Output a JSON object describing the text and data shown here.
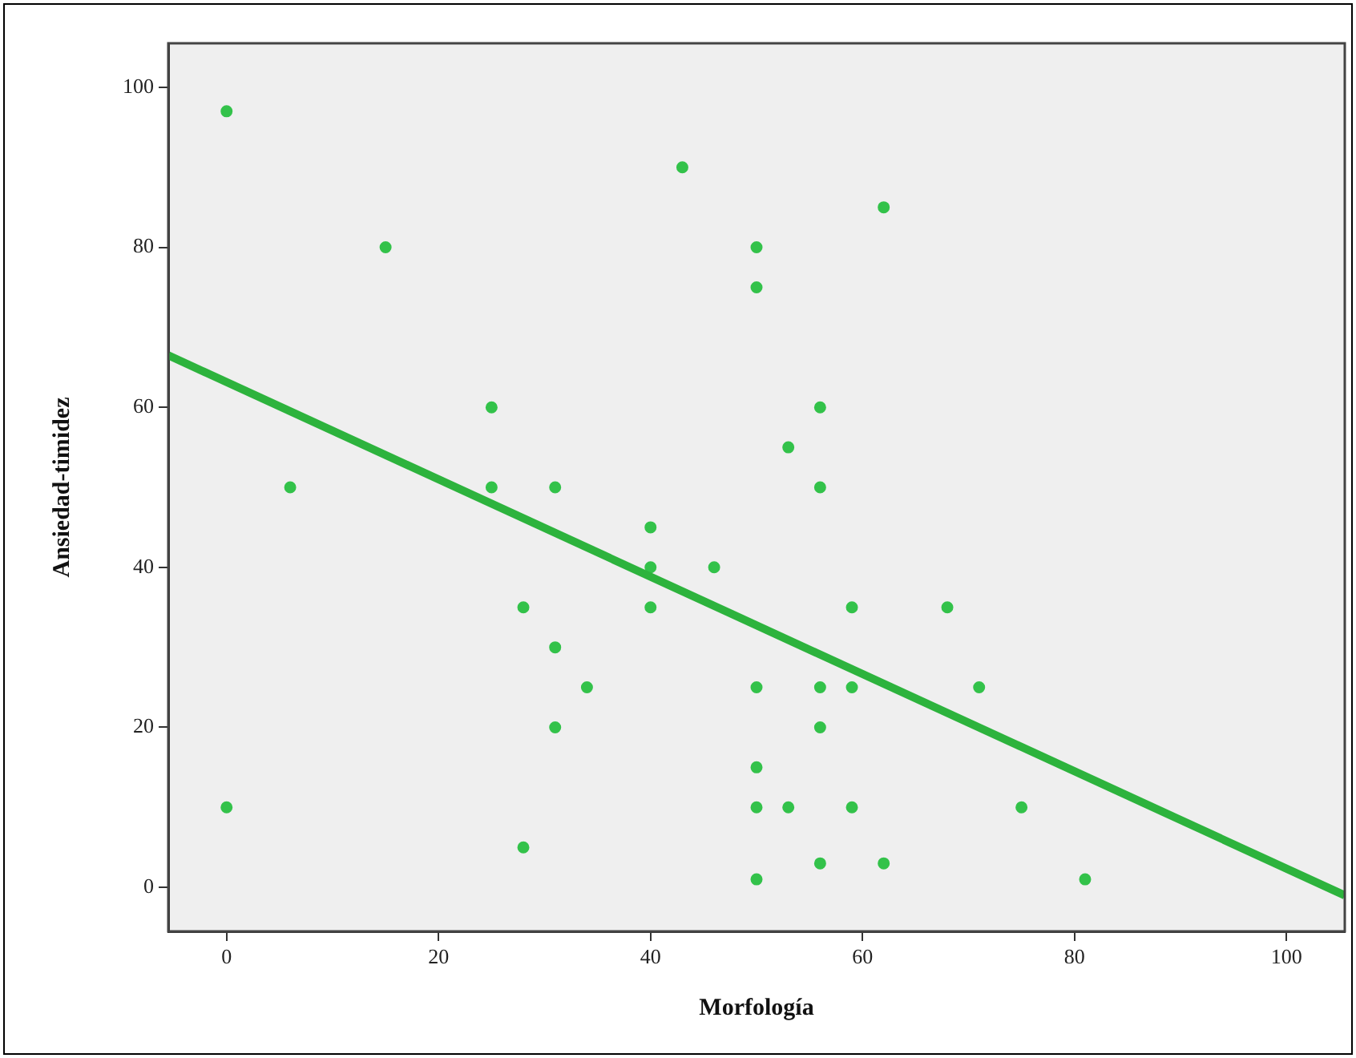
{
  "chart_data": {
    "type": "scatter",
    "xlabel": "Morfología",
    "ylabel": "Ansiedad-timidez",
    "xlim": [
      -5.5,
      105.5
    ],
    "ylim": [
      -5.5,
      105.5
    ],
    "xticks": [
      0,
      20,
      40,
      60,
      80,
      100
    ],
    "yticks": [
      0,
      20,
      40,
      60,
      80,
      100
    ],
    "marker": "circle",
    "legend": false,
    "series": [
      {
        "color": "#33c24a",
        "x": [
          0,
          0,
          6,
          15,
          25,
          25,
          28,
          28,
          31,
          31,
          31,
          34,
          40,
          40,
          40,
          43,
          46,
          50,
          50,
          50,
          50,
          50,
          50,
          53,
          53,
          56,
          56,
          56,
          56,
          56,
          59,
          59,
          59,
          62,
          62,
          68,
          71,
          75,
          81
        ],
        "values": [
          97,
          10,
          50,
          80,
          60,
          50,
          35,
          5,
          50,
          30,
          20,
          25,
          45,
          40,
          35,
          90,
          40,
          80,
          75,
          25,
          15,
          10,
          1,
          55,
          10,
          60,
          50,
          25,
          20,
          3,
          35,
          25,
          10,
          85,
          3,
          35,
          25,
          10,
          1
        ]
      },
      {
        "type": "line",
        "color": "#2db33d",
        "marker": "none",
        "line_style": "solid",
        "x": [
          -5.5,
          105.5
        ],
        "values": [
          66.5,
          -1
        ]
      }
    ]
  }
}
